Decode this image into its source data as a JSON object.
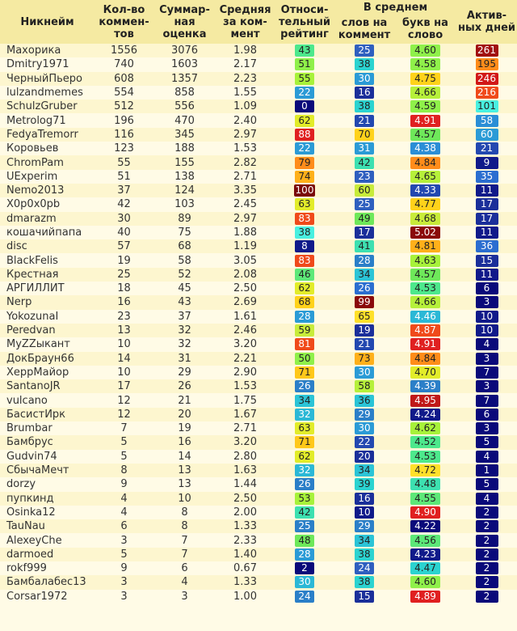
{
  "headers": {
    "nick": "Никнейм",
    "comments": "Кол-во коммен-тов",
    "sum": "Суммар-ная оценка",
    "avg": "Средняя за ком-мент",
    "rel": "Относи-тельный рейтинг",
    "avg_group": "В среднем",
    "words": "слов на коммент",
    "letters": "букв на слово",
    "days": "Актив-ных дней"
  },
  "rows": [
    {
      "nick": "Махорика",
      "comments": "1556",
      "sum": "3076",
      "avg": "1.98",
      "rel": "43",
      "rel_bg": "#4de88c",
      "rel_fg": "#222",
      "words": "25",
      "words_bg": "#2f5fbf",
      "words_fg": "#fff",
      "letters": "4.60",
      "letters_bg": "#8ff04a",
      "letters_fg": "#222",
      "days": "261",
      "days_bg": "#a11010",
      "days_fg": "#fff"
    },
    {
      "nick": "Dmitry1971",
      "comments": "740",
      "sum": "1603",
      "avg": "2.17",
      "rel": "51",
      "rel_bg": "#8ff04a",
      "rel_fg": "#222",
      "words": "38",
      "words_bg": "#2bd3d0",
      "words_fg": "#222",
      "letters": "4.58",
      "letters_bg": "#8ff04a",
      "letters_fg": "#222",
      "days": "195",
      "days_bg": "#ff8c1a",
      "days_fg": "#222"
    },
    {
      "nick": "ЧерныйПьеро",
      "comments": "608",
      "sum": "1357",
      "avg": "2.23",
      "rel": "55",
      "rel_bg": "#a7f23a",
      "rel_fg": "#222",
      "words": "30",
      "words_bg": "#2b9bd6",
      "words_fg": "#fff",
      "letters": "4.75",
      "letters_bg": "#ffd21a",
      "letters_fg": "#222",
      "days": "246",
      "days_bg": "#d21818",
      "days_fg": "#fff"
    },
    {
      "nick": "lulzandmemes",
      "comments": "554",
      "sum": "858",
      "avg": "1.55",
      "rel": "22",
      "rel_bg": "#2b9bd6",
      "rel_fg": "#fff",
      "words": "16",
      "words_bg": "#1b2f9a",
      "words_fg": "#fff",
      "letters": "4.66",
      "letters_bg": "#b6f03a",
      "letters_fg": "#222",
      "days": "216",
      "days_bg": "#f04a1a",
      "days_fg": "#fff"
    },
    {
      "nick": "SchulzGruber",
      "comments": "512",
      "sum": "556",
      "avg": "1.09",
      "rel": "0",
      "rel_bg": "#0a0a7a",
      "rel_fg": "#fff",
      "words": "38",
      "words_bg": "#2bd3d0",
      "words_fg": "#222",
      "letters": "4.59",
      "letters_bg": "#8ff04a",
      "letters_fg": "#222",
      "days": "101",
      "days_bg": "#48f0e0",
      "days_fg": "#222"
    },
    {
      "nick": "Metrolog71",
      "comments": "196",
      "sum": "470",
      "avg": "2.40",
      "rel": "62",
      "rel_bg": "#e2ec2a",
      "rel_fg": "#222",
      "words": "21",
      "words_bg": "#2348b0",
      "words_fg": "#fff",
      "letters": "4.91",
      "letters_bg": "#e02020",
      "letters_fg": "#fff",
      "days": "58",
      "days_bg": "#2b8ed6",
      "days_fg": "#fff"
    },
    {
      "nick": "FedyaTremorr",
      "comments": "116",
      "sum": "345",
      "avg": "2.97",
      "rel": "88",
      "rel_bg": "#e02020",
      "rel_fg": "#fff",
      "words": "70",
      "words_bg": "#ffd21a",
      "words_fg": "#222",
      "letters": "4.57",
      "letters_bg": "#6ee85a",
      "letters_fg": "#222",
      "days": "60",
      "days_bg": "#2b9bd6",
      "days_fg": "#fff"
    },
    {
      "nick": "Коровьев",
      "comments": "123",
      "sum": "188",
      "avg": "1.53",
      "rel": "22",
      "rel_bg": "#2b9bd6",
      "rel_fg": "#fff",
      "words": "31",
      "words_bg": "#2b9bd6",
      "words_fg": "#fff",
      "letters": "4.38",
      "letters_bg": "#2b8ed6",
      "letters_fg": "#fff",
      "days": "21",
      "days_bg": "#2348b0",
      "days_fg": "#fff"
    },
    {
      "nick": "ChromPam",
      "comments": "55",
      "sum": "155",
      "avg": "2.82",
      "rel": "79",
      "rel_bg": "#ff8c1a",
      "rel_fg": "#222",
      "words": "42",
      "words_bg": "#3de0b0",
      "words_fg": "#222",
      "letters": "4.84",
      "letters_bg": "#ff8c1a",
      "letters_fg": "#222",
      "days": "9",
      "days_bg": "#101a8a",
      "days_fg": "#fff"
    },
    {
      "nick": "UExperim",
      "comments": "51",
      "sum": "138",
      "avg": "2.71",
      "rel": "74",
      "rel_bg": "#ffb01a",
      "rel_fg": "#222",
      "words": "23",
      "words_bg": "#2f5fbf",
      "words_fg": "#fff",
      "letters": "4.65",
      "letters_bg": "#b6f03a",
      "letters_fg": "#222",
      "days": "35",
      "days_bg": "#2b6ed0",
      "days_fg": "#fff"
    },
    {
      "nick": "Nemo2013",
      "comments": "37",
      "sum": "124",
      "avg": "3.35",
      "rel": "100",
      "rel_bg": "#7a0a0a",
      "rel_fg": "#fff",
      "words": "60",
      "words_bg": "#c8ec3a",
      "words_fg": "#222",
      "letters": "4.33",
      "letters_bg": "#2348b0",
      "letters_fg": "#fff",
      "days": "11",
      "days_bg": "#101a8a",
      "days_fg": "#fff"
    },
    {
      "nick": "X0p0x0pb",
      "comments": "42",
      "sum": "103",
      "avg": "2.45",
      "rel": "63",
      "rel_bg": "#e2ec2a",
      "rel_fg": "#222",
      "words": "25",
      "words_bg": "#2f5fbf",
      "words_fg": "#fff",
      "letters": "4.77",
      "letters_bg": "#ffd21a",
      "letters_fg": "#222",
      "days": "17",
      "days_bg": "#1b2f9a",
      "days_fg": "#fff"
    },
    {
      "nick": "dmarazm",
      "comments": "30",
      "sum": "89",
      "avg": "2.97",
      "rel": "83",
      "rel_bg": "#f04a1a",
      "rel_fg": "#fff",
      "words": "49",
      "words_bg": "#6ee85a",
      "words_fg": "#222",
      "letters": "4.68",
      "letters_bg": "#c8ec3a",
      "letters_fg": "#222",
      "days": "17",
      "days_bg": "#1b2f9a",
      "days_fg": "#fff"
    },
    {
      "nick": "кошачийпапа",
      "comments": "40",
      "sum": "75",
      "avg": "1.88",
      "rel": "38",
      "rel_bg": "#48f0e0",
      "rel_fg": "#222",
      "words": "17",
      "words_bg": "#1b2f9a",
      "words_fg": "#fff",
      "letters": "5.02",
      "letters_bg": "#8a0a0a",
      "letters_fg": "#fff",
      "days": "11",
      "days_bg": "#101a8a",
      "days_fg": "#fff"
    },
    {
      "nick": "disc",
      "comments": "57",
      "sum": "68",
      "avg": "1.19",
      "rel": "8",
      "rel_bg": "#101a8a",
      "rel_fg": "#fff",
      "words": "41",
      "words_bg": "#3de0b0",
      "words_fg": "#222",
      "letters": "4.81",
      "letters_bg": "#ffb01a",
      "letters_fg": "#222",
      "days": "36",
      "days_bg": "#2b6ed0",
      "days_fg": "#fff"
    },
    {
      "nick": "BlackFelis",
      "comments": "19",
      "sum": "58",
      "avg": "3.05",
      "rel": "83",
      "rel_bg": "#f04a1a",
      "rel_fg": "#fff",
      "words": "28",
      "words_bg": "#2b7fc8",
      "words_fg": "#fff",
      "letters": "4.63",
      "letters_bg": "#a7f23a",
      "letters_fg": "#222",
      "days": "15",
      "days_bg": "#1b2f9a",
      "days_fg": "#fff"
    },
    {
      "nick": "Крестная",
      "comments": "25",
      "sum": "52",
      "avg": "2.08",
      "rel": "46",
      "rel_bg": "#5de878",
      "rel_fg": "#222",
      "words": "34",
      "words_bg": "#2bc4d6",
      "words_fg": "#222",
      "letters": "4.57",
      "letters_bg": "#6ee85a",
      "letters_fg": "#222",
      "days": "11",
      "days_bg": "#101a8a",
      "days_fg": "#fff"
    },
    {
      "nick": "АРГИЛЛИТ",
      "comments": "18",
      "sum": "45",
      "avg": "2.50",
      "rel": "62",
      "rel_bg": "#e2ec2a",
      "rel_fg": "#222",
      "words": "26",
      "words_bg": "#2b6ed0",
      "words_fg": "#fff",
      "letters": "4.53",
      "letters_bg": "#4de88c",
      "letters_fg": "#222",
      "days": "6",
      "days_bg": "#0a0a7a",
      "days_fg": "#fff"
    },
    {
      "nick": "Nerp",
      "comments": "16",
      "sum": "43",
      "avg": "2.69",
      "rel": "68",
      "rel_bg": "#ffd21a",
      "rel_fg": "#222",
      "words": "99",
      "words_bg": "#8a0a0a",
      "words_fg": "#fff",
      "letters": "4.66",
      "letters_bg": "#b6f03a",
      "letters_fg": "#222",
      "days": "3",
      "days_bg": "#0a0a7a",
      "days_fg": "#fff"
    },
    {
      "nick": "YokozunaI",
      "comments": "23",
      "sum": "37",
      "avg": "1.61",
      "rel": "28",
      "rel_bg": "#2b9bd6",
      "rel_fg": "#fff",
      "words": "65",
      "words_bg": "#ffe02a",
      "words_fg": "#222",
      "letters": "4.46",
      "letters_bg": "#2bb8d6",
      "letters_fg": "#fff",
      "days": "10",
      "days_bg": "#101a8a",
      "days_fg": "#fff"
    },
    {
      "nick": "Peredvan",
      "comments": "13",
      "sum": "32",
      "avg": "2.46",
      "rel": "59",
      "rel_bg": "#c8ec3a",
      "rel_fg": "#222",
      "words": "19",
      "words_bg": "#1b2f9a",
      "words_fg": "#fff",
      "letters": "4.87",
      "letters_bg": "#f04a1a",
      "letters_fg": "#fff",
      "days": "10",
      "days_bg": "#101a8a",
      "days_fg": "#fff"
    },
    {
      "nick": "MyZZыкант",
      "comments": "10",
      "sum": "32",
      "avg": "3.20",
      "rel": "81",
      "rel_bg": "#f04a1a",
      "rel_fg": "#fff",
      "words": "21",
      "words_bg": "#2348b0",
      "words_fg": "#fff",
      "letters": "4.91",
      "letters_bg": "#e02020",
      "letters_fg": "#fff",
      "days": "4",
      "days_bg": "#0a0a7a",
      "days_fg": "#fff"
    },
    {
      "nick": "ДокБраун66",
      "comments": "14",
      "sum": "31",
      "avg": "2.21",
      "rel": "50",
      "rel_bg": "#8ff04a",
      "rel_fg": "#222",
      "words": "73",
      "words_bg": "#ffb01a",
      "words_fg": "#222",
      "letters": "4.84",
      "letters_bg": "#ff8c1a",
      "letters_fg": "#222",
      "days": "3",
      "days_bg": "#0a0a7a",
      "days_fg": "#fff"
    },
    {
      "nick": "ХеррМайор",
      "comments": "10",
      "sum": "29",
      "avg": "2.90",
      "rel": "71",
      "rel_bg": "#ffc81a",
      "rel_fg": "#222",
      "words": "30",
      "words_bg": "#2b9bd6",
      "words_fg": "#fff",
      "letters": "4.70",
      "letters_bg": "#e2ec2a",
      "letters_fg": "#222",
      "days": "7",
      "days_bg": "#0a0a7a",
      "days_fg": "#fff"
    },
    {
      "nick": "SantanoJR",
      "comments": "17",
      "sum": "26",
      "avg": "1.53",
      "rel": "26",
      "rel_bg": "#2b7fc8",
      "rel_fg": "#fff",
      "words": "58",
      "words_bg": "#b6f03a",
      "words_fg": "#222",
      "letters": "4.39",
      "letters_bg": "#2b7fc8",
      "letters_fg": "#fff",
      "days": "3",
      "days_bg": "#0a0a7a",
      "days_fg": "#fff"
    },
    {
      "nick": "vulcano",
      "comments": "12",
      "sum": "21",
      "avg": "1.75",
      "rel": "34",
      "rel_bg": "#2bc4d6",
      "rel_fg": "#222",
      "words": "36",
      "words_bg": "#2bc4d6",
      "words_fg": "#222",
      "letters": "4.95",
      "letters_bg": "#c01818",
      "letters_fg": "#fff",
      "days": "7",
      "days_bg": "#0a0a7a",
      "days_fg": "#fff"
    },
    {
      "nick": "БасистИрк",
      "comments": "12",
      "sum": "20",
      "avg": "1.67",
      "rel": "32",
      "rel_bg": "#2bb8d6",
      "rel_fg": "#fff",
      "words": "29",
      "words_bg": "#2b7fc8",
      "words_fg": "#fff",
      "letters": "4.24",
      "letters_bg": "#101a8a",
      "letters_fg": "#fff",
      "days": "6",
      "days_bg": "#0a0a7a",
      "days_fg": "#fff"
    },
    {
      "nick": "Brumbar",
      "comments": "7",
      "sum": "19",
      "avg": "2.71",
      "rel": "63",
      "rel_bg": "#e2ec2a",
      "rel_fg": "#222",
      "words": "30",
      "words_bg": "#2b9bd6",
      "words_fg": "#fff",
      "letters": "4.62",
      "letters_bg": "#a7f23a",
      "letters_fg": "#222",
      "days": "3",
      "days_bg": "#0a0a7a",
      "days_fg": "#fff"
    },
    {
      "nick": "Бамбрус",
      "comments": "5",
      "sum": "16",
      "avg": "3.20",
      "rel": "71",
      "rel_bg": "#ffc81a",
      "rel_fg": "#222",
      "words": "22",
      "words_bg": "#2348b0",
      "words_fg": "#fff",
      "letters": "4.52",
      "letters_bg": "#4de88c",
      "letters_fg": "#222",
      "days": "5",
      "days_bg": "#0a0a7a",
      "days_fg": "#fff"
    },
    {
      "nick": "Gudvin74",
      "comments": "5",
      "sum": "14",
      "avg": "2.80",
      "rel": "62",
      "rel_bg": "#e2ec2a",
      "rel_fg": "#222",
      "words": "20",
      "words_bg": "#1b2f9a",
      "words_fg": "#fff",
      "letters": "4.53",
      "letters_bg": "#4de88c",
      "letters_fg": "#222",
      "days": "4",
      "days_bg": "#0a0a7a",
      "days_fg": "#fff"
    },
    {
      "nick": "СбычаМечт",
      "comments": "8",
      "sum": "13",
      "avg": "1.63",
      "rel": "32",
      "rel_bg": "#2bb8d6",
      "rel_fg": "#fff",
      "words": "34",
      "words_bg": "#2bc4d6",
      "words_fg": "#222",
      "letters": "4.72",
      "letters_bg": "#ffe02a",
      "letters_fg": "#222",
      "days": "1",
      "days_bg": "#0a0a7a",
      "days_fg": "#fff"
    },
    {
      "nick": "dorzy",
      "comments": "9",
      "sum": "13",
      "avg": "1.44",
      "rel": "26",
      "rel_bg": "#2b7fc8",
      "rel_fg": "#fff",
      "words": "39",
      "words_bg": "#2bd3d0",
      "words_fg": "#222",
      "letters": "4.48",
      "letters_bg": "#3de0b0",
      "letters_fg": "#222",
      "days": "5",
      "days_bg": "#0a0a7a",
      "days_fg": "#fff"
    },
    {
      "nick": "пупкинд",
      "comments": "4",
      "sum": "10",
      "avg": "2.50",
      "rel": "53",
      "rel_bg": "#a7f23a",
      "rel_fg": "#222",
      "words": "16",
      "words_bg": "#1b2f9a",
      "words_fg": "#fff",
      "letters": "4.55",
      "letters_bg": "#5de878",
      "letters_fg": "#222",
      "days": "4",
      "days_bg": "#0a0a7a",
      "days_fg": "#fff"
    },
    {
      "nick": "Osinka12",
      "comments": "4",
      "sum": "8",
      "avg": "2.00",
      "rel": "42",
      "rel_bg": "#3de0b0",
      "rel_fg": "#222",
      "words": "10",
      "words_bg": "#101a8a",
      "words_fg": "#fff",
      "letters": "4.90",
      "letters_bg": "#e02020",
      "letters_fg": "#fff",
      "days": "2",
      "days_bg": "#0a0a7a",
      "days_fg": "#fff"
    },
    {
      "nick": "TauNau",
      "comments": "6",
      "sum": "8",
      "avg": "1.33",
      "rel": "25",
      "rel_bg": "#2b7fc8",
      "rel_fg": "#fff",
      "words": "29",
      "words_bg": "#2b7fc8",
      "words_fg": "#fff",
      "letters": "4.22",
      "letters_bg": "#0a0a7a",
      "letters_fg": "#fff",
      "days": "2",
      "days_bg": "#0a0a7a",
      "days_fg": "#fff"
    },
    {
      "nick": "AlexeyChe",
      "comments": "3",
      "sum": "7",
      "avg": "2.33",
      "rel": "48",
      "rel_bg": "#6ee85a",
      "rel_fg": "#222",
      "words": "34",
      "words_bg": "#2bc4d6",
      "words_fg": "#222",
      "letters": "4.56",
      "letters_bg": "#5de878",
      "letters_fg": "#222",
      "days": "2",
      "days_bg": "#0a0a7a",
      "days_fg": "#fff"
    },
    {
      "nick": "darmoed",
      "comments": "5",
      "sum": "7",
      "avg": "1.40",
      "rel": "28",
      "rel_bg": "#2b9bd6",
      "rel_fg": "#fff",
      "words": "38",
      "words_bg": "#2bd3d0",
      "words_fg": "#222",
      "letters": "4.23",
      "letters_bg": "#101a8a",
      "letters_fg": "#fff",
      "days": "2",
      "days_bg": "#0a0a7a",
      "days_fg": "#fff"
    },
    {
      "nick": "rokf999",
      "comments": "9",
      "sum": "6",
      "avg": "0.67",
      "rel": "2",
      "rel_bg": "#0a0a7a",
      "rel_fg": "#fff",
      "words": "24",
      "words_bg": "#2f5fbf",
      "words_fg": "#fff",
      "letters": "4.47",
      "letters_bg": "#2bd3d0",
      "letters_fg": "#222",
      "days": "2",
      "days_bg": "#0a0a7a",
      "days_fg": "#fff"
    },
    {
      "nick": "Бамбалабес13",
      "comments": "3",
      "sum": "4",
      "avg": "1.33",
      "rel": "30",
      "rel_bg": "#2bb8d6",
      "rel_fg": "#fff",
      "words": "38",
      "words_bg": "#2bd3d0",
      "words_fg": "#222",
      "letters": "4.60",
      "letters_bg": "#8ff04a",
      "letters_fg": "#222",
      "days": "2",
      "days_bg": "#0a0a7a",
      "days_fg": "#fff"
    },
    {
      "nick": "Corsar1972",
      "comments": "3",
      "sum": "3",
      "avg": "1.00",
      "rel": "24",
      "rel_bg": "#2b7fc8",
      "rel_fg": "#fff",
      "words": "15",
      "words_bg": "#1b2f9a",
      "words_fg": "#fff",
      "letters": "4.89",
      "letters_bg": "#e02020",
      "letters_fg": "#fff",
      "days": "2",
      "days_bg": "#0a0a7a",
      "days_fg": "#fff"
    }
  ]
}
